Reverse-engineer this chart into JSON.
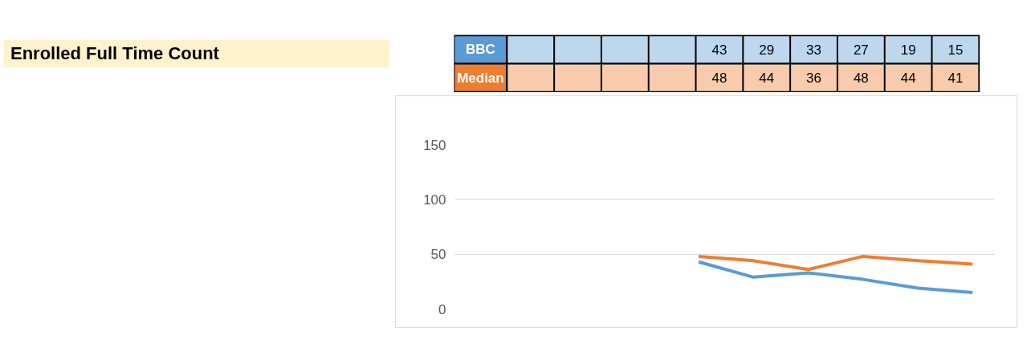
{
  "chart_data": {
    "type": "line",
    "title": "Enrolled Full Time Count",
    "categories": [
      null,
      null,
      null,
      null,
      null,
      null,
      null,
      null,
      null,
      null
    ],
    "series": [
      {
        "name": "BBC",
        "color": "#5b9bd5",
        "values": [
          null,
          null,
          null,
          null,
          43,
          29,
          33,
          27,
          19,
          15
        ]
      },
      {
        "name": "Median",
        "color": "#ed7d31",
        "values": [
          null,
          null,
          null,
          null,
          48,
          44,
          36,
          48,
          44,
          41
        ]
      }
    ],
    "ylim": [
      0,
      150
    ],
    "yticks": [
      0,
      50,
      100,
      150
    ],
    "grid": "y",
    "tick_labels": "y",
    "data_labels": true,
    "line_style": "solid",
    "marker": "none"
  }
}
